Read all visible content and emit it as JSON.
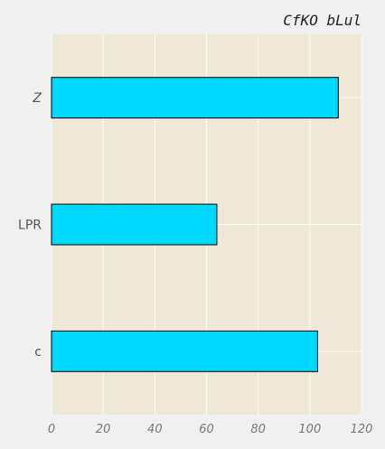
{
  "chart_data": {
    "type": "bar",
    "orientation": "horizontal",
    "title": "CfKO bLul",
    "xlabel": "",
    "ylabel": "",
    "categories": [
      "Z",
      "LPR",
      "c"
    ],
    "category_styles": [
      "italic",
      "normal",
      "normal"
    ],
    "values": [
      111,
      64,
      103
    ],
    "xlim": [
      0,
      120
    ],
    "xticks": [
      0,
      20,
      40,
      60,
      80,
      100,
      120
    ],
    "grid": true,
    "colors": {
      "bar": "#00d8ff",
      "bar_edge": "#000000",
      "plot_background": "#efe8d6",
      "grid": "#fbfaf5",
      "figure_background": "#f0f0f0"
    }
  }
}
